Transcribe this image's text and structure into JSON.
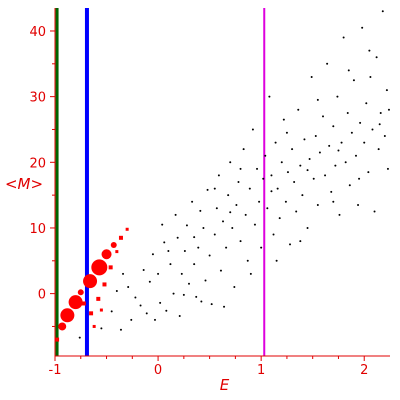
{
  "chart_data": {
    "type": "scatter",
    "title": "",
    "xlabel": "E",
    "ylabel": "<M>",
    "xlim": [
      -1.0,
      2.25
    ],
    "ylim": [
      -9.5,
      43.5
    ],
    "x_ticks": [
      -1,
      0,
      1,
      2
    ],
    "y_ticks": [
      0,
      10,
      20,
      30,
      40
    ],
    "grid": false,
    "legend": "none",
    "colors": {
      "axes": "#e00000",
      "points": "#000000",
      "highlight": "#ff0000",
      "line_green": "#006400",
      "line_blue": "#0000ff",
      "line_magenta": "#dd00dd"
    },
    "vertical_lines": [
      {
        "x": -0.98,
        "color": "#006400"
      },
      {
        "x": -0.69,
        "color": "#0000ff"
      },
      {
        "x": 1.03,
        "color": "#dd00dd"
      }
    ],
    "series": [
      {
        "color": "#ff0000",
        "points": [
          {
            "x": -0.98,
            "y": -7.0,
            "size": 2
          },
          {
            "x": -0.93,
            "y": -5.0,
            "size": 4
          },
          {
            "x": -0.88,
            "y": -3.3,
            "size": 7
          },
          {
            "x": -0.8,
            "y": -1.3,
            "size": 7
          },
          {
            "x": -0.75,
            "y": 0.2,
            "size": 3
          },
          {
            "x": -0.66,
            "y": 1.9,
            "size": 7
          },
          {
            "x": -0.57,
            "y": 4.0,
            "size": 8
          },
          {
            "x": -0.5,
            "y": 6.0,
            "size": 5
          },
          {
            "x": -0.43,
            "y": 7.4,
            "size": 3
          },
          {
            "x": -0.36,
            "y": 8.5,
            "size": 2
          },
          {
            "x": -0.3,
            "y": 9.8,
            "size": 1.5
          },
          {
            "x": -0.72,
            "y": -1.5,
            "size": 2
          },
          {
            "x": -0.65,
            "y": -3.0,
            "size": 2
          },
          {
            "x": -0.58,
            "y": -0.8,
            "size": 2
          },
          {
            "x": -0.52,
            "y": 1.4,
            "size": 2
          },
          {
            "x": -0.46,
            "y": 4.0,
            "size": 2
          },
          {
            "x": -0.4,
            "y": 6.4,
            "size": 1.5
          },
          {
            "x": -0.62,
            "y": -5.0,
            "size": 1.5
          },
          {
            "x": -0.55,
            "y": -2.5,
            "size": 1.5
          }
        ]
      },
      {
        "color": "#000000",
        "points": [
          {
            "x": -0.76,
            "y": -6.7
          },
          {
            "x": -0.55,
            "y": -5.3
          },
          {
            "x": -0.45,
            "y": -2.7
          },
          {
            "x": -0.4,
            "y": 0.4
          },
          {
            "x": -0.36,
            "y": -5.5
          },
          {
            "x": -0.34,
            "y": 3.0
          },
          {
            "x": -0.29,
            "y": 1.0
          },
          {
            "x": -0.26,
            "y": -4.0
          },
          {
            "x": -0.22,
            "y": -0.6
          },
          {
            "x": -0.17,
            "y": -1.8
          },
          {
            "x": -0.14,
            "y": 3.6
          },
          {
            "x": -0.11,
            "y": -3.0
          },
          {
            "x": -0.08,
            "y": 1.8
          },
          {
            "x": -0.05,
            "y": 6.0
          },
          {
            "x": -0.03,
            "y": -4.0
          },
          {
            "x": 0.0,
            "y": 3.0
          },
          {
            "x": 0.02,
            "y": -1.4
          },
          {
            "x": 0.04,
            "y": 10.5
          },
          {
            "x": 0.06,
            "y": 7.8
          },
          {
            "x": 0.08,
            "y": -2.6
          },
          {
            "x": 0.12,
            "y": 4.5
          },
          {
            "x": 0.15,
            "y": 0.0
          },
          {
            "x": 0.17,
            "y": 12.0
          },
          {
            "x": 0.19,
            "y": 8.5
          },
          {
            "x": 0.21,
            "y": -3.4
          },
          {
            "x": 0.23,
            "y": 3.0
          },
          {
            "x": 0.26,
            "y": 6.5
          },
          {
            "x": 0.28,
            "y": 10.4
          },
          {
            "x": 0.3,
            "y": 1.5
          },
          {
            "x": 0.33,
            "y": 14.0
          },
          {
            "x": 0.35,
            "y": 4.5
          },
          {
            "x": 0.37,
            "y": -0.5
          },
          {
            "x": 0.39,
            "y": 7.0
          },
          {
            "x": 0.41,
            "y": 12.6
          },
          {
            "x": 0.44,
            "y": 10.0
          },
          {
            "x": 0.46,
            "y": 2.0
          },
          {
            "x": 0.48,
            "y": 15.8
          },
          {
            "x": 0.5,
            "y": 5.8
          },
          {
            "x": 0.52,
            "y": -1.6
          },
          {
            "x": 0.55,
            "y": 9.0
          },
          {
            "x": 0.57,
            "y": 13.0
          },
          {
            "x": 0.59,
            "y": 18.0
          },
          {
            "x": 0.61,
            "y": 3.5
          },
          {
            "x": 0.63,
            "y": 11.0
          },
          {
            "x": 0.66,
            "y": 7.0
          },
          {
            "x": 0.68,
            "y": 15.0
          },
          {
            "x": 0.7,
            "y": 20.0
          },
          {
            "x": 0.72,
            "y": 10.0
          },
          {
            "x": 0.74,
            "y": 1.0
          },
          {
            "x": 0.76,
            "y": 13.5
          },
          {
            "x": 0.78,
            "y": 17.0
          },
          {
            "x": 0.8,
            "y": 8.0
          },
          {
            "x": 0.83,
            "y": 22.0
          },
          {
            "x": 0.85,
            "y": 12.0
          },
          {
            "x": 0.87,
            "y": 5.0
          },
          {
            "x": 0.89,
            "y": 16.0
          },
          {
            "x": 0.92,
            "y": 25.0
          },
          {
            "x": 0.94,
            "y": 10.5
          },
          {
            "x": 0.96,
            "y": 19.0
          },
          {
            "x": 0.98,
            "y": 14.0
          },
          {
            "x": 1.0,
            "y": 7.0
          },
          {
            "x": 1.02,
            "y": 17.5
          },
          {
            "x": 1.04,
            "y": 21.0
          },
          {
            "x": 1.06,
            "y": 13.0
          },
          {
            "x": 1.08,
            "y": 30.0
          },
          {
            "x": 1.1,
            "y": 18.0
          },
          {
            "x": 1.12,
            "y": 9.0
          },
          {
            "x": 1.14,
            "y": 23.0
          },
          {
            "x": 1.16,
            "y": 16.0
          },
          {
            "x": 1.18,
            "y": 11.5
          },
          {
            "x": 1.2,
            "y": 20.0
          },
          {
            "x": 1.22,
            "y": 26.5
          },
          {
            "x": 1.24,
            "y": 14.0
          },
          {
            "x": 1.26,
            "y": 18.5
          },
          {
            "x": 1.28,
            "y": 7.5
          },
          {
            "x": 1.3,
            "y": 22.0
          },
          {
            "x": 1.32,
            "y": 17.0
          },
          {
            "x": 1.34,
            "y": 12.5
          },
          {
            "x": 1.36,
            "y": 28.0
          },
          {
            "x": 1.38,
            "y": 19.5
          },
          {
            "x": 1.4,
            "y": 15.0
          },
          {
            "x": 1.42,
            "y": 23.5
          },
          {
            "x": 1.45,
            "y": 10.0
          },
          {
            "x": 1.47,
            "y": 20.5
          },
          {
            "x": 1.49,
            "y": 33.0
          },
          {
            "x": 1.51,
            "y": 17.5
          },
          {
            "x": 1.53,
            "y": 24.0
          },
          {
            "x": 1.55,
            "y": 13.5
          },
          {
            "x": 1.57,
            "y": 21.5
          },
          {
            "x": 1.6,
            "y": 27.0
          },
          {
            "x": 1.62,
            "y": 18.0
          },
          {
            "x": 1.64,
            "y": 35.0
          },
          {
            "x": 1.66,
            "y": 22.5
          },
          {
            "x": 1.68,
            "y": 15.5
          },
          {
            "x": 1.7,
            "y": 25.5
          },
          {
            "x": 1.72,
            "y": 19.5
          },
          {
            "x": 1.74,
            "y": 30.0
          },
          {
            "x": 1.76,
            "y": 12.0
          },
          {
            "x": 1.78,
            "y": 23.0
          },
          {
            "x": 1.8,
            "y": 39.0
          },
          {
            "x": 1.82,
            "y": 20.0
          },
          {
            "x": 1.84,
            "y": 27.5
          },
          {
            "x": 1.86,
            "y": 16.5
          },
          {
            "x": 1.88,
            "y": 24.5
          },
          {
            "x": 1.9,
            "y": 32.5
          },
          {
            "x": 1.92,
            "y": 21.0
          },
          {
            "x": 1.94,
            "y": 13.5
          },
          {
            "x": 1.96,
            "y": 26.0
          },
          {
            "x": 1.98,
            "y": 40.5
          },
          {
            "x": 2.0,
            "y": 23.0
          },
          {
            "x": 2.02,
            "y": 29.0
          },
          {
            "x": 2.04,
            "y": 18.5
          },
          {
            "x": 2.06,
            "y": 33.0
          },
          {
            "x": 2.08,
            "y": 25.0
          },
          {
            "x": 2.1,
            "y": 12.5
          },
          {
            "x": 2.12,
            "y": 36.0
          },
          {
            "x": 2.14,
            "y": 22.0
          },
          {
            "x": 2.16,
            "y": 27.5
          },
          {
            "x": 2.18,
            "y": 43.0
          },
          {
            "x": 2.2,
            "y": 24.0
          },
          {
            "x": 2.22,
            "y": 31.0
          },
          {
            "x": 2.23,
            "y": 19.0
          },
          {
            "x": 2.24,
            "y": 28.0
          },
          {
            "x": 0.9,
            "y": 3.0
          },
          {
            "x": 0.64,
            "y": -2.0
          },
          {
            "x": 0.42,
            "y": -1.2
          },
          {
            "x": 1.15,
            "y": 5.0
          },
          {
            "x": 1.38,
            "y": 8.0
          },
          {
            "x": 0.25,
            "y": -0.2
          },
          {
            "x": 0.1,
            "y": 6.5
          },
          {
            "x": 1.7,
            "y": 14.0
          },
          {
            "x": 1.95,
            "y": 17.5
          },
          {
            "x": 0.55,
            "y": 16.0
          },
          {
            "x": 0.8,
            "y": 19.0
          },
          {
            "x": 1.25,
            "y": 24.5
          },
          {
            "x": 1.55,
            "y": 29.5
          },
          {
            "x": 1.85,
            "y": 34.0
          },
          {
            "x": 2.05,
            "y": 37.0
          },
          {
            "x": 0.35,
            "y": 8.6
          },
          {
            "x": 0.7,
            "y": 12.4
          },
          {
            "x": 1.1,
            "y": 15.6
          },
          {
            "x": 1.45,
            "y": 18.8
          },
          {
            "x": 1.75,
            "y": 21.8
          },
          {
            "x": 2.15,
            "y": 25.8
          }
        ]
      }
    ]
  }
}
